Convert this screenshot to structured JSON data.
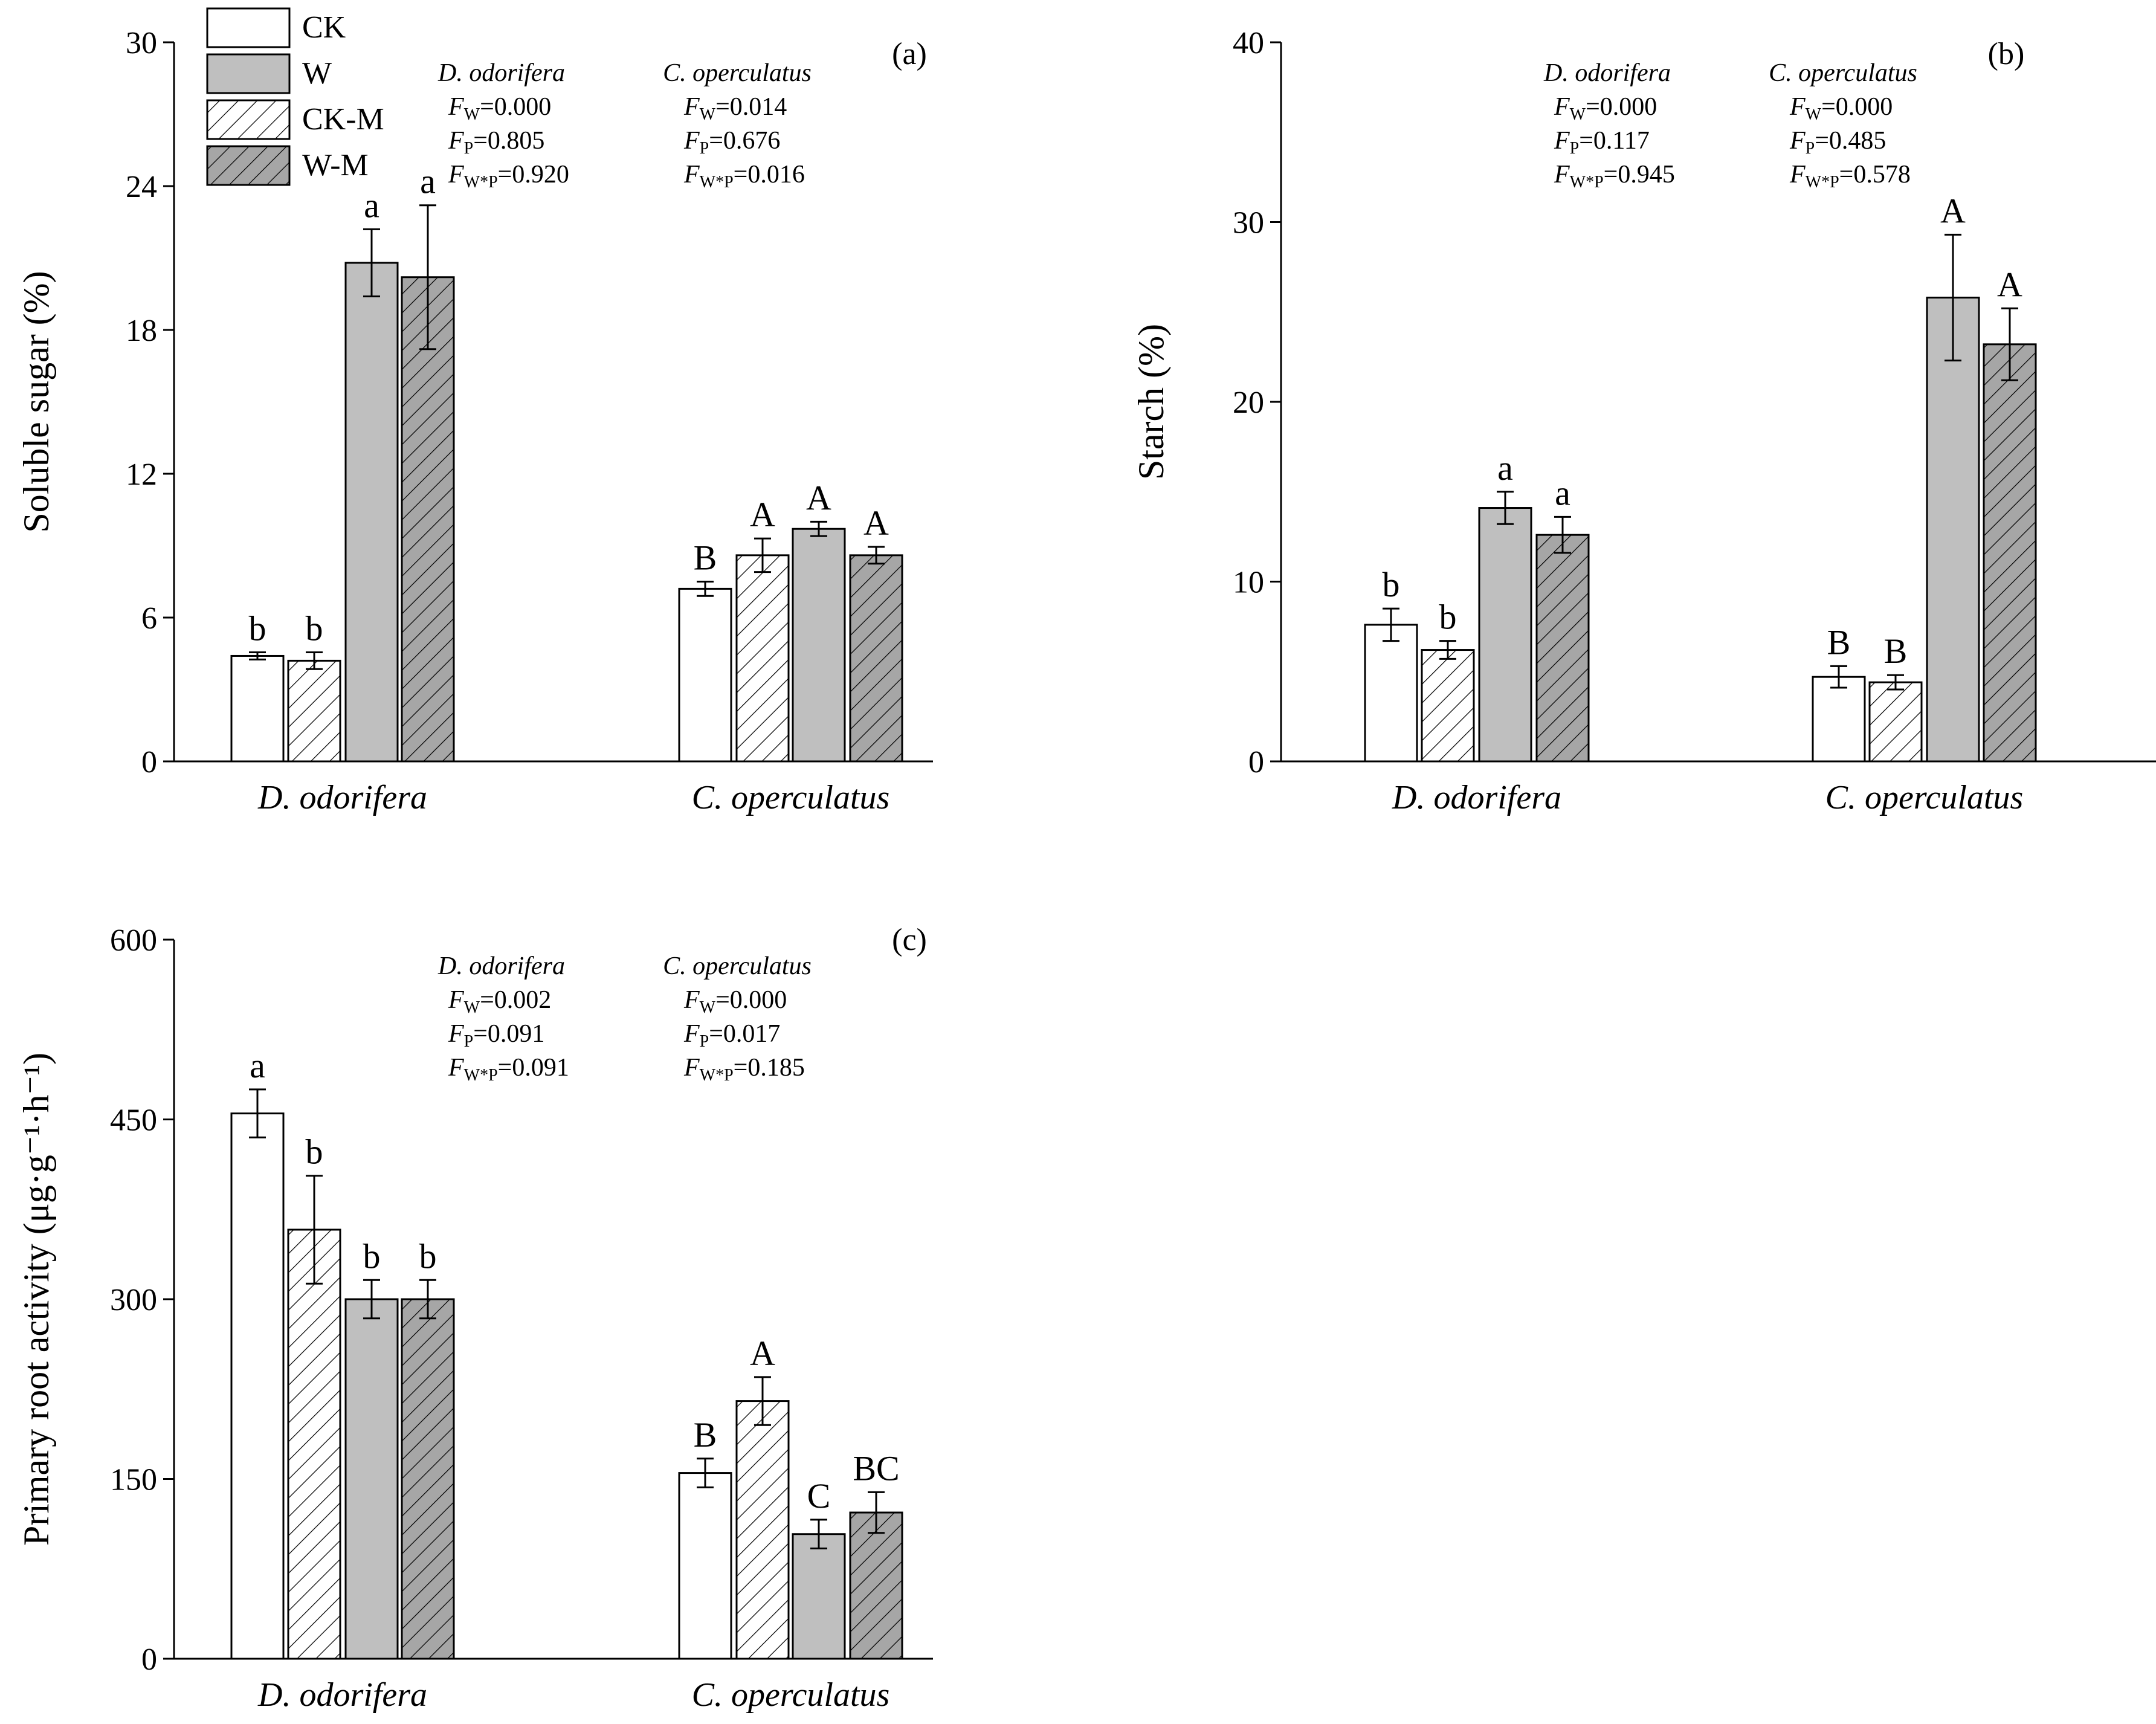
{
  "legend": [
    {
      "label": "CK",
      "fill": "#ffffff",
      "hatch": false
    },
    {
      "label": "W",
      "fill": "#bfbfbf",
      "hatch": false
    },
    {
      "label": "CK-M",
      "fill": "#ffffff",
      "hatch": true
    },
    {
      "label": "W-M",
      "fill": "#a6a6a6",
      "hatch": true
    }
  ],
  "colors": {
    "axis": "#000000",
    "bar_outline": "#000000",
    "w_fill": "#bfbfbf",
    "wm_fill": "#a6a6a6",
    "ck_fill": "#ffffff"
  },
  "chart_data": [
    {
      "type": "bar",
      "panel": "(a)",
      "ylabel": "Soluble sugar (%)",
      "ylim": [
        0,
        30
      ],
      "yticks": [
        0,
        6,
        12,
        18,
        24,
        30
      ],
      "categories": [
        "D. odorifera",
        "C. operculatus"
      ],
      "series": [
        {
          "name": "CK",
          "values": [
            4.4,
            7.2
          ],
          "errors": [
            0.15,
            0.3
          ],
          "letters": [
            "b",
            "B"
          ]
        },
        {
          "name": "CK-M",
          "values": [
            4.2,
            8.6
          ],
          "errors": [
            0.35,
            0.7
          ],
          "letters": [
            "b",
            "A"
          ]
        },
        {
          "name": "W",
          "values": [
            20.8,
            9.7
          ],
          "errors": [
            1.4,
            0.3
          ],
          "letters": [
            "a",
            "A"
          ]
        },
        {
          "name": "W-M",
          "values": [
            20.2,
            8.6
          ],
          "errors": [
            3.0,
            0.35
          ],
          "letters": [
            "a",
            "A"
          ]
        }
      ],
      "stats": [
        {
          "species": "D. odorifera",
          "rows": [
            {
              "label": "F",
              "sub": "W",
              "value": "=0.000"
            },
            {
              "label": "F",
              "sub": "P",
              "value": "=0.805"
            },
            {
              "label": "F",
              "sub": "W*P",
              "value": "=0.920"
            }
          ]
        },
        {
          "species": "C. operculatus",
          "rows": [
            {
              "label": "F",
              "sub": "W",
              "value": "=0.014"
            },
            {
              "label": "F",
              "sub": "P",
              "value": "=0.676"
            },
            {
              "label": "F",
              "sub": "W*P",
              "value": "=0.016"
            }
          ]
        }
      ]
    },
    {
      "type": "bar",
      "panel": "(b)",
      "ylabel": "Starch (%)",
      "ylim": [
        0,
        40
      ],
      "yticks": [
        0,
        10,
        20,
        30,
        40
      ],
      "categories": [
        "D. odorifera",
        "C. operculatus"
      ],
      "series": [
        {
          "name": "CK",
          "values": [
            7.6,
            4.7
          ],
          "errors": [
            0.9,
            0.6
          ],
          "letters": [
            "b",
            "B"
          ]
        },
        {
          "name": "CK-M",
          "values": [
            6.2,
            4.4
          ],
          "errors": [
            0.5,
            0.4
          ],
          "letters": [
            "b",
            "B"
          ]
        },
        {
          "name": "W",
          "values": [
            14.1,
            25.8
          ],
          "errors": [
            0.9,
            3.5
          ],
          "letters": [
            "a",
            "A"
          ]
        },
        {
          "name": "W-M",
          "values": [
            12.6,
            23.2
          ],
          "errors": [
            1.0,
            2.0
          ],
          "letters": [
            "a",
            "A"
          ]
        }
      ],
      "stats": [
        {
          "species": "D. odorifera",
          "rows": [
            {
              "label": "F",
              "sub": "W",
              "value": "=0.000"
            },
            {
              "label": "F",
              "sub": "P",
              "value": "=0.117"
            },
            {
              "label": "F",
              "sub": "W*P",
              "value": "=0.945"
            }
          ]
        },
        {
          "species": "C. operculatus",
          "rows": [
            {
              "label": "F",
              "sub": "W",
              "value": "=0.000"
            },
            {
              "label": "F",
              "sub": "P",
              "value": "=0.485"
            },
            {
              "label": "F",
              "sub": "W*P",
              "value": "=0.578"
            }
          ]
        }
      ]
    },
    {
      "type": "bar",
      "panel": "(c)",
      "ylabel": "Primary root activity (μg·g⁻¹·h⁻¹)",
      "ylim": [
        0,
        600
      ],
      "yticks": [
        0,
        150,
        300,
        450,
        600
      ],
      "categories": [
        "D. odorifera",
        "C. operculatus"
      ],
      "series": [
        {
          "name": "CK",
          "values": [
            455,
            155
          ],
          "errors": [
            20,
            12
          ],
          "letters": [
            "a",
            "B"
          ]
        },
        {
          "name": "CK-M",
          "values": [
            358,
            215
          ],
          "errors": [
            45,
            20
          ],
          "letters": [
            "b",
            "A"
          ]
        },
        {
          "name": "W",
          "values": [
            300,
            104
          ],
          "errors": [
            16,
            12
          ],
          "letters": [
            "b",
            "C"
          ]
        },
        {
          "name": "W-M",
          "values": [
            300,
            122
          ],
          "errors": [
            16,
            17
          ],
          "letters": [
            "b",
            "BC"
          ]
        }
      ],
      "stats": [
        {
          "species": "D. odorifera",
          "rows": [
            {
              "label": "F",
              "sub": "W",
              "value": "=0.002"
            },
            {
              "label": "F",
              "sub": "P",
              "value": "=0.091"
            },
            {
              "label": "F",
              "sub": "W*P",
              "value": "=0.091"
            }
          ]
        },
        {
          "species": "C. operculatus",
          "rows": [
            {
              "label": "F",
              "sub": "W",
              "value": "=0.000"
            },
            {
              "label": "F",
              "sub": "P",
              "value": "=0.017"
            },
            {
              "label": "F",
              "sub": "W*P",
              "value": "=0.185"
            }
          ]
        }
      ]
    }
  ]
}
